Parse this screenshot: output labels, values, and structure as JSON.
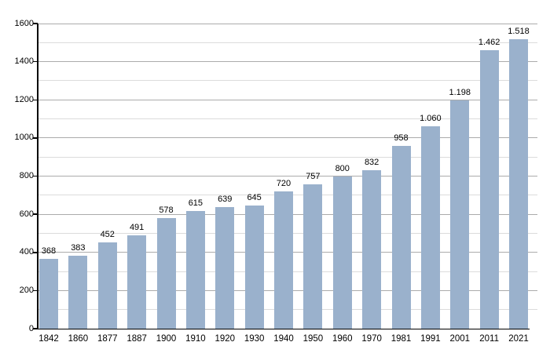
{
  "chart_data": {
    "type": "bar",
    "title": "",
    "xlabel": "",
    "ylabel": "",
    "categories": [
      "1842",
      "1860",
      "1877",
      "1887",
      "1900",
      "1910",
      "1920",
      "1930",
      "1940",
      "1950",
      "1960",
      "1970",
      "1981",
      "1991",
      "2001",
      "2011",
      "2021"
    ],
    "values": [
      368,
      383,
      452,
      491,
      578,
      615,
      639,
      645,
      720,
      757,
      800,
      832,
      958,
      1060,
      1198,
      1462,
      1518
    ],
    "value_labels": [
      "368",
      "383",
      "452",
      "491",
      "578",
      "615",
      "639",
      "645",
      "720",
      "757",
      "800",
      "832",
      "958",
      "1.060",
      "1.198",
      "1.462",
      "1.518"
    ],
    "ylim": [
      0,
      1600
    ],
    "y_major_ticks": [
      0,
      200,
      400,
      600,
      800,
      1000,
      1200,
      1400,
      1600
    ],
    "y_major_tick_labels": [
      "0",
      "200",
      "400",
      "600",
      "800",
      "1000",
      "1200",
      "1400",
      "1600"
    ],
    "y_minor_step": 100,
    "grid": true,
    "legend_position": "none",
    "colors": {
      "bar": "#9AB1CC",
      "major_grid": "#ABABAB",
      "minor_grid": "#DCDCDC",
      "axis": "#000000",
      "text": "#000000",
      "background": "#FFFFFF"
    }
  }
}
